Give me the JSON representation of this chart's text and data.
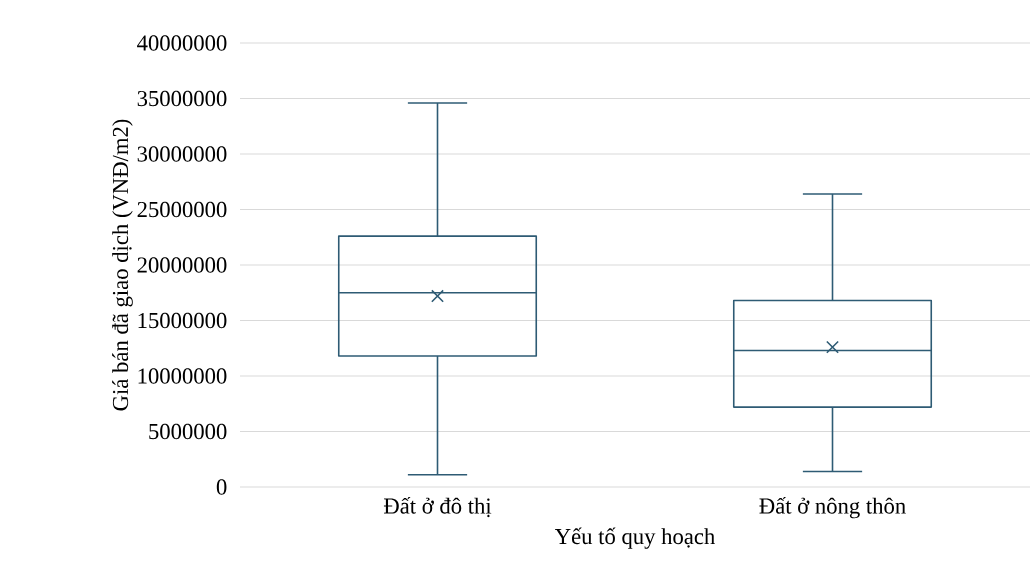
{
  "chart_data": {
    "type": "box",
    "xlabel": "Yếu tố quy hoạch",
    "ylabel": "Giá bán đã giao dịch (VNĐ/m2)",
    "categories": [
      "Đất ở đô thị",
      "Đất ở nông thôn"
    ],
    "color": "#2e5b74",
    "boxes": [
      {
        "low": 1100000,
        "q1": 11800000,
        "median": 17500000,
        "q3": 22600000,
        "high": 34600000,
        "mean": 17200000
      },
      {
        "low": 1400000,
        "q1": 7200000,
        "median": 12300000,
        "q3": 16800000,
        "high": 26400000,
        "mean": 12600000
      }
    ],
    "ylim": [
      0,
      40000000
    ],
    "yticks": [
      0,
      5000000,
      10000000,
      15000000,
      20000000,
      25000000,
      30000000,
      35000000,
      40000000
    ],
    "grid": "y"
  }
}
